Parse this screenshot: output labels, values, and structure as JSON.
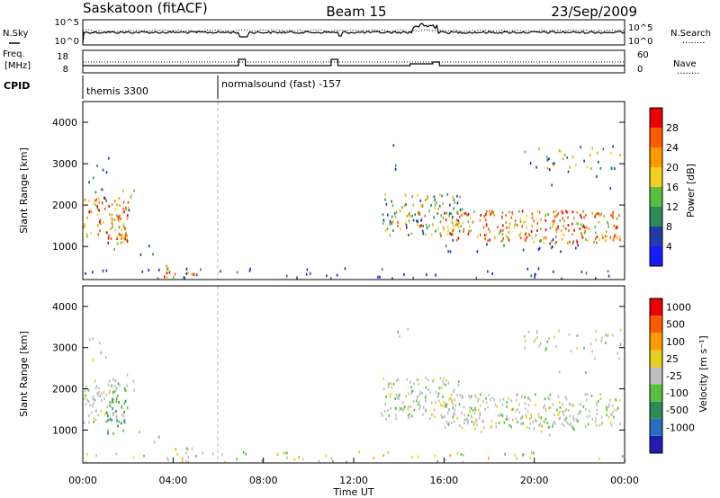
{
  "header": {
    "station": "Saskatoon (fitACF)",
    "beam": "Beam 15",
    "date": "23/Sep/2009"
  },
  "labels": {
    "nsky": "N.Sky",
    "nsearch": "N.Search",
    "freq_top": "Freq.",
    "freq_unit": "[MHz]",
    "nave": "Nave",
    "cpid": "CPID",
    "slant_range": "Slant Range [km]",
    "power": "Power [dB]",
    "velocity": "Velocity [m s⁻¹]",
    "time": "Time UT",
    "legend_dots": "........"
  },
  "cpid_segments": [
    {
      "start_hour": 0,
      "text": "themis 3300"
    },
    {
      "start_hour": 6,
      "text": "normalsound (fast) -157"
    }
  ],
  "colors": {
    "power_scale": [
      "#1a1aff",
      "#1e3caa",
      "#2e8b57",
      "#57c040",
      "#f2d020",
      "#ff9a00",
      "#ff5a00",
      "#ee0000"
    ],
    "velocity_scale": [
      "#1e1eb4",
      "#2a6fbf",
      "#2e8b57",
      "#57c040",
      "#bdbdbd",
      "#e8d020",
      "#ff9a00",
      "#ff5a00",
      "#ee0000"
    ]
  },
  "chart_data": [
    {
      "type": "line",
      "name": "noise-panel",
      "left_ticks": [
        "10^5",
        "10^0"
      ],
      "right_ticks": [
        "10^5",
        "10^0"
      ],
      "series": [
        {
          "name": "N.Sky"
        },
        {
          "name": "N.Search"
        }
      ]
    },
    {
      "type": "line",
      "name": "frequency-nave-panel",
      "left_ticks": [
        "18",
        "8"
      ],
      "right_ticks": [
        "60",
        "0"
      ],
      "series": [
        {
          "name": "Freq."
        },
        {
          "name": "Nave"
        }
      ]
    },
    {
      "type": "heatmap",
      "name": "power-panel",
      "ylabel": "Slant Range [km]",
      "ylim": [
        200,
        4500
      ],
      "yticks": [
        "1000",
        "2000",
        "3000",
        "4000"
      ],
      "xlim": [
        0,
        24
      ],
      "colorbar_label": "Power [dB]",
      "colorbar_ticks": [
        "4",
        "8",
        "12",
        "16",
        "20",
        "24",
        "28"
      ],
      "colorbar_range": [
        0,
        32
      ]
    },
    {
      "type": "heatmap",
      "name": "velocity-panel",
      "ylabel": "Slant Range [km]",
      "ylim": [
        200,
        4500
      ],
      "yticks": [
        "1000",
        "2000",
        "3000",
        "4000"
      ],
      "xlim": [
        0,
        24
      ],
      "xlabel": "Time UT",
      "xticks": [
        "00:00",
        "04:00",
        "08:00",
        "12:00",
        "16:00",
        "20:00",
        "00:00"
      ],
      "colorbar_label": "Velocity [m s⁻¹]",
      "colorbar_ticks": [
        "1000",
        "500",
        "100",
        "25",
        "-25",
        "-100",
        "-500",
        "-1000"
      ]
    }
  ]
}
